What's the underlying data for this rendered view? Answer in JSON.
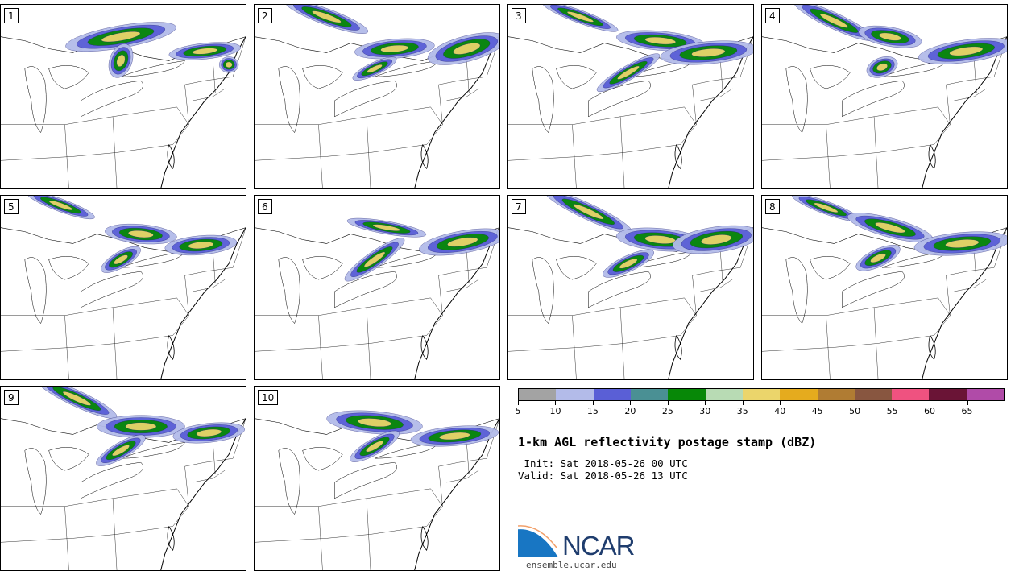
{
  "members": [
    {
      "label": "1",
      "storms": [
        [
          150,
          40,
          70,
          14,
          -10
        ],
        [
          255,
          58,
          45,
          10,
          -6
        ],
        [
          150,
          70,
          14,
          22,
          20
        ],
        [
          285,
          75,
          12,
          10,
          0
        ]
      ]
    },
    {
      "label": "2",
      "storms": [
        [
          90,
          15,
          55,
          10,
          20
        ],
        [
          175,
          55,
          50,
          12,
          -5
        ],
        [
          265,
          55,
          50,
          16,
          -15
        ],
        [
          150,
          80,
          30,
          8,
          -25
        ]
      ]
    },
    {
      "label": "3",
      "storms": [
        [
          90,
          15,
          50,
          8,
          20
        ],
        [
          190,
          45,
          55,
          12,
          5
        ],
        [
          250,
          60,
          60,
          14,
          -5
        ],
        [
          150,
          85,
          45,
          9,
          -30
        ]
      ]
    },
    {
      "label": "4",
      "storms": [
        [
          90,
          20,
          55,
          10,
          25
        ],
        [
          160,
          40,
          40,
          12,
          10
        ],
        [
          255,
          58,
          60,
          14,
          -8
        ],
        [
          150,
          78,
          20,
          12,
          -20
        ]
      ]
    },
    {
      "label": "5",
      "storms": [
        [
          75,
          12,
          45,
          8,
          20
        ],
        [
          175,
          48,
          45,
          12,
          5
        ],
        [
          250,
          62,
          45,
          12,
          -5
        ],
        [
          150,
          80,
          28,
          10,
          -30
        ]
      ]
    },
    {
      "label": "6",
      "storms": [
        [
          165,
          40,
          50,
          8,
          10
        ],
        [
          260,
          58,
          55,
          14,
          -10
        ],
        [
          150,
          80,
          45,
          10,
          -35
        ]
      ]
    },
    {
      "label": "7",
      "storms": [
        [
          100,
          20,
          60,
          10,
          25
        ],
        [
          190,
          55,
          55,
          14,
          5
        ],
        [
          260,
          55,
          55,
          16,
          -8
        ],
        [
          150,
          85,
          35,
          10,
          -25
        ]
      ]
    },
    {
      "label": "8",
      "storms": [
        [
          80,
          15,
          45,
          8,
          20
        ],
        [
          160,
          40,
          55,
          12,
          15
        ],
        [
          250,
          60,
          60,
          14,
          -5
        ],
        [
          145,
          78,
          30,
          11,
          -25
        ]
      ]
    },
    {
      "label": "9",
      "storms": [
        [
          95,
          15,
          55,
          10,
          25
        ],
        [
          175,
          50,
          55,
          14,
          0
        ],
        [
          260,
          58,
          45,
          12,
          -6
        ],
        [
          150,
          80,
          35,
          10,
          -30
        ]
      ]
    },
    {
      "label": "10",
      "storms": [
        [
          150,
          45,
          60,
          14,
          5
        ],
        [
          250,
          62,
          55,
          12,
          -5
        ],
        [
          150,
          75,
          35,
          10,
          -30
        ]
      ]
    }
  ],
  "colorbar": {
    "colors": [
      "#a3a3a3",
      "#b3bbe9",
      "#5a5fd6",
      "#4a9094",
      "#078807",
      "#b8dbb4",
      "#ebd56b",
      "#e5ab1e",
      "#b07c33",
      "#885640",
      "#ef5280",
      "#6a1436",
      "#b04ba8"
    ],
    "ticks": [
      "5",
      "10",
      "15",
      "20",
      "25",
      "30",
      "35",
      "40",
      "45",
      "50",
      "55",
      "60",
      "65"
    ]
  },
  "title": "1-km AGL reflectivity postage stamp (dBZ)",
  "init_line": " Init: Sat 2018-05-26 00 UTC",
  "valid_line": "Valid: Sat 2018-05-26 13 UTC",
  "logo": {
    "text": "NCAR",
    "brand_color": "#1f3d6e",
    "accent_color": "#1876c3",
    "highlight_color": "#f2a06a"
  },
  "site": "ensemble.ucar.edu"
}
